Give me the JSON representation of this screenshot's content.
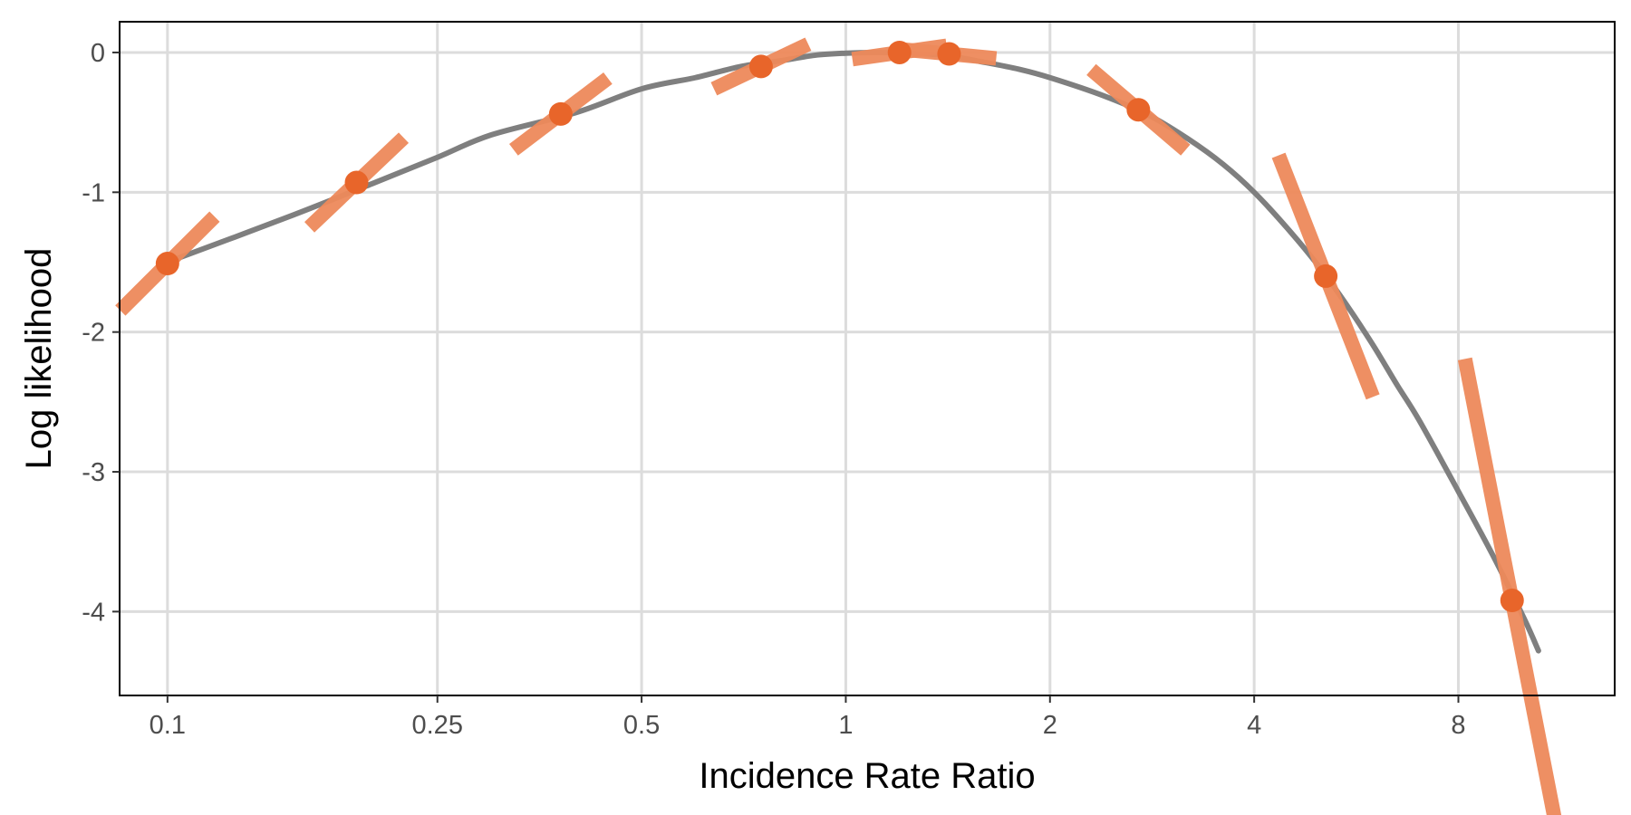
{
  "colors": {
    "curve": "#7f7f7f",
    "point": "#e8652a",
    "segment": "#ee8a5b",
    "grid": "#dcdcdc",
    "background": "#ffffff"
  },
  "chart_data": {
    "type": "line",
    "xlabel": "Incidence Rate Ratio",
    "ylabel": "Log likelihood",
    "x_scale": "log",
    "xlim": [
      0.085,
      13.6
    ],
    "ylim": [
      -4.6,
      0.22
    ],
    "x_ticks": [
      {
        "value": 0.1,
        "label": "0.1"
      },
      {
        "value": 0.25,
        "label": "0.25"
      },
      {
        "value": 0.5,
        "label": "0.5"
      },
      {
        "value": 1,
        "label": "1"
      },
      {
        "value": 2,
        "label": "2"
      },
      {
        "value": 4,
        "label": "4"
      },
      {
        "value": 8,
        "label": "8"
      }
    ],
    "y_ticks": [
      {
        "value": 0,
        "label": "0"
      },
      {
        "value": -1,
        "label": "-1"
      },
      {
        "value": -2,
        "label": "-2"
      },
      {
        "value": -3,
        "label": "-3"
      },
      {
        "value": -4,
        "label": "-4"
      }
    ],
    "grid": true,
    "legend": "none",
    "curve": {
      "x": [
        0.1,
        0.15,
        0.2,
        0.25,
        0.3,
        0.4,
        0.5,
        0.6,
        0.7,
        0.8,
        0.9,
        1.0,
        1.1,
        1.2,
        1.4,
        1.6,
        1.8,
        2.0,
        2.4,
        2.8,
        3.2,
        3.6,
        4.0,
        4.5,
        5.0,
        5.5,
        6.0,
        6.5,
        7.0,
        8.0,
        9.0,
        10.0,
        10.5
      ],
      "y": [
        -1.5,
        -1.18,
        -0.94,
        -0.75,
        -0.59,
        -0.43,
        -0.26,
        -0.18,
        -0.1,
        -0.06,
        -0.02,
        -0.005,
        0.0,
        -0.003,
        -0.02,
        -0.07,
        -0.12,
        -0.18,
        -0.31,
        -0.45,
        -0.62,
        -0.8,
        -1.0,
        -1.27,
        -1.54,
        -1.82,
        -2.1,
        -2.38,
        -2.63,
        -3.14,
        -3.6,
        -4.05,
        -4.28
      ]
    },
    "points": {
      "x": [
        0.1,
        0.19,
        0.38,
        0.75,
        1.2,
        1.42,
        2.7,
        5.1,
        9.6
      ],
      "y": [
        -1.51,
        -0.93,
        -0.44,
        -0.1,
        0.0,
        -0.01,
        -0.41,
        -1.6,
        -3.92
      ],
      "slope": [
        2.1,
        2.0,
        1.6,
        1.0,
        0.3,
        -0.2,
        -1.8,
        -5.4,
        -10.8
      ]
    }
  }
}
